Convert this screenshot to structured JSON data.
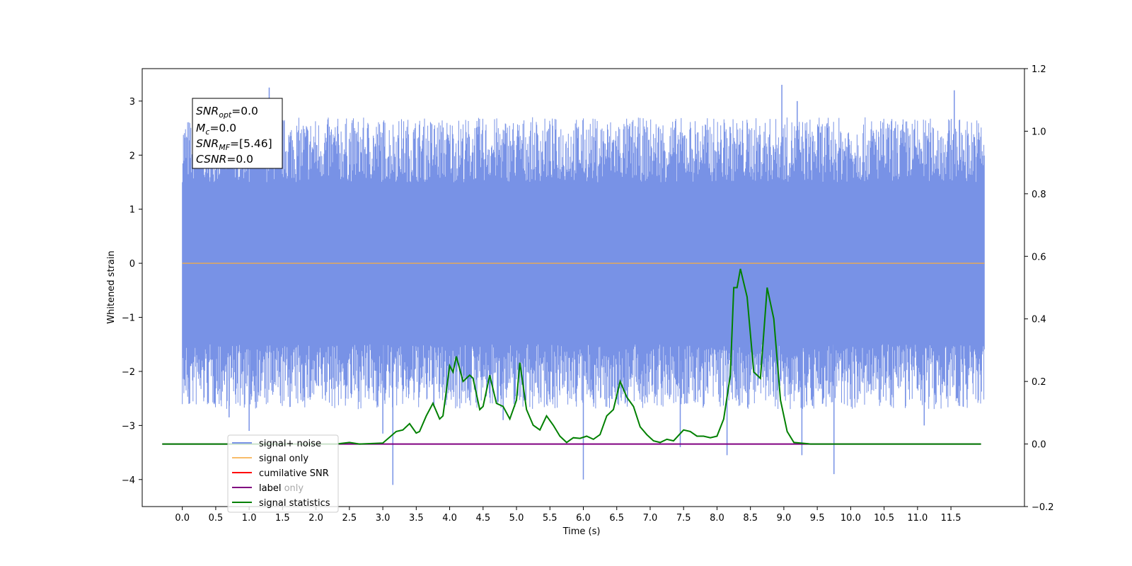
{
  "chart_data": {
    "type": "line",
    "xlabel": "Time (s)",
    "ylabel": "Whitened strain",
    "xlim": [
      -0.6,
      12.6
    ],
    "ylim": [
      -4.5,
      3.6
    ],
    "y2lim": [
      -0.2,
      1.2
    ],
    "x_ticks": [
      "0.0",
      "0.5",
      "1.0",
      "1.5",
      "2.0",
      "2.5",
      "3.0",
      "3.5",
      "4.0",
      "4.5",
      "5.0",
      "5.5",
      "6.0",
      "6.5",
      "7.0",
      "7.5",
      "8.0",
      "8.5",
      "9.0",
      "9.5",
      "10.0",
      "10.5",
      "11.0",
      "11.5"
    ],
    "y_ticks": [
      "−4",
      "−3",
      "−2",
      "−1",
      "0",
      "1",
      "2",
      "3"
    ],
    "y2_ticks": [
      "−0.2",
      "0.0",
      "0.2",
      "0.4",
      "0.6",
      "0.8",
      "1.0",
      "1.2"
    ],
    "info_box": {
      "snr_opt_value": "=0.0",
      "mc_value": "=0.0",
      "snr_mf_value": "=[5.46]",
      "csnr_value": "=0.0"
    },
    "legend": {
      "signal_noise": "signal+ noise",
      "signal_only": "signal only",
      "cumulative_snr": "cumilative SNR",
      "label_only": "label only",
      "label": "label",
      "signal_statistics": "signal statistics"
    },
    "colors": {
      "signal_noise": "#7892e6",
      "signal_only": "#f6ab43",
      "cumulative_snr": "#ff0000",
      "label": "#800080",
      "signal_statistics": "#008000"
    },
    "series": [
      {
        "name": "signal+ noise",
        "axis": "left",
        "x_range": [
          0.0,
          12.0
        ],
        "band_lower": -1.5,
        "band_upper": 1.5,
        "spikes": [
          [
            1.3,
            3.25
          ],
          [
            8.97,
            3.3
          ],
          [
            11.55,
            3.2
          ],
          [
            9.2,
            3.0
          ],
          [
            3.15,
            -4.1
          ],
          [
            6.0,
            -4.0
          ],
          [
            9.75,
            -3.9
          ],
          [
            8.15,
            -3.55
          ],
          [
            9.27,
            -3.55
          ],
          [
            7.45,
            -3.4
          ],
          [
            3.0,
            -3.15
          ],
          [
            1.0,
            -3.1
          ],
          [
            11.1,
            -3.0
          ],
          [
            4.8,
            -2.9
          ],
          [
            0.7,
            -2.85
          ],
          [
            0.1,
            -2.6
          ]
        ]
      },
      {
        "name": "signal only",
        "axis": "left",
        "x": [
          0.0,
          12.0
        ],
        "y": [
          0.0,
          0.0
        ]
      },
      {
        "name": "label",
        "axis": "right",
        "x": [
          -0.3,
          11.95
        ],
        "y": [
          0.0,
          0.0
        ]
      },
      {
        "name": "signal statistics",
        "axis": "right",
        "x": [
          -0.3,
          2.3,
          2.5,
          2.65,
          3.0,
          3.2,
          3.3,
          3.4,
          3.5,
          3.55,
          3.65,
          3.75,
          3.85,
          3.9,
          4.0,
          4.05,
          4.1,
          4.2,
          4.3,
          4.35,
          4.45,
          4.5,
          4.6,
          4.7,
          4.8,
          4.9,
          5.0,
          5.05,
          5.15,
          5.25,
          5.35,
          5.45,
          5.55,
          5.65,
          5.75,
          5.85,
          5.95,
          6.05,
          6.15,
          6.25,
          6.35,
          6.45,
          6.55,
          6.65,
          6.75,
          6.85,
          6.95,
          7.05,
          7.15,
          7.25,
          7.35,
          7.5,
          7.6,
          7.7,
          7.8,
          7.9,
          8.0,
          8.1,
          8.2,
          8.25,
          8.3,
          8.35,
          8.45,
          8.55,
          8.65,
          8.75,
          8.85,
          8.95,
          9.05,
          9.15,
          9.4,
          11.95
        ],
        "y": [
          0.0,
          0.0,
          0.005,
          0.0,
          0.003,
          0.04,
          0.045,
          0.065,
          0.035,
          0.04,
          0.09,
          0.13,
          0.08,
          0.09,
          0.25,
          0.23,
          0.28,
          0.2,
          0.22,
          0.21,
          0.11,
          0.12,
          0.22,
          0.13,
          0.12,
          0.08,
          0.14,
          0.26,
          0.11,
          0.06,
          0.045,
          0.09,
          0.06,
          0.025,
          0.005,
          0.02,
          0.018,
          0.025,
          0.015,
          0.03,
          0.09,
          0.11,
          0.2,
          0.15,
          0.12,
          0.055,
          0.03,
          0.01,
          0.005,
          0.015,
          0.01,
          0.045,
          0.04,
          0.025,
          0.025,
          0.02,
          0.025,
          0.08,
          0.22,
          0.5,
          0.5,
          0.56,
          0.47,
          0.23,
          0.21,
          0.5,
          0.4,
          0.14,
          0.04,
          0.005,
          0.0,
          0.0
        ]
      }
    ]
  }
}
